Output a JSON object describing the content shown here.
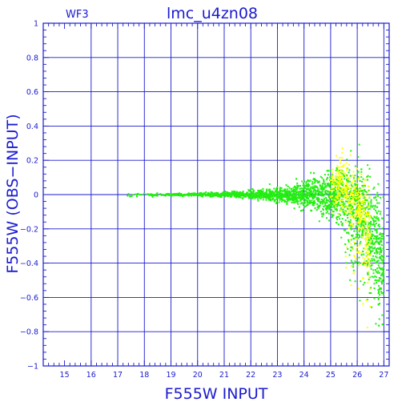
{
  "chart_data": {
    "type": "scatter",
    "title": "lmc_u4zn08",
    "corner_label": "WF3",
    "xlabel": "F555W  INPUT",
    "ylabel": "F555W  (OBS−INPUT)",
    "xlim": [
      14.2,
      27.2
    ],
    "ylim": [
      -1,
      1
    ],
    "x_ticks": [
      15,
      16,
      17,
      18,
      19,
      20,
      21,
      22,
      23,
      24,
      25,
      26,
      27
    ],
    "y_ticks": [
      1,
      0.8,
      0.6,
      0.4,
      0.2,
      0,
      -0.2,
      -0.4,
      -0.6,
      -0.8,
      -1
    ],
    "x_tick_labels": [
      "15",
      "16",
      "17",
      "18",
      "19",
      "20",
      "21",
      "22",
      "23",
      "24",
      "25",
      "26",
      "27"
    ],
    "y_tick_labels": [
      "1",
      "0.8",
      "0.6",
      "0.4",
      "0.2",
      "0",
      "−0.2",
      "−0.4",
      "−0.6",
      "−0.8",
      "−1"
    ],
    "grid": true,
    "colors": {
      "axes": "#1a1ad0",
      "primary": "#22ee11",
      "secondary": "#ffff00"
    },
    "series": [
      {
        "color": "#22ee11",
        "envelope": [
          {
            "mag": 17.0,
            "median": 0.0,
            "spread": 0.018
          },
          {
            "mag": 18.0,
            "median": 0.0,
            "spread": 0.012
          },
          {
            "mag": 19.0,
            "median": 0.0,
            "spread": 0.01
          },
          {
            "mag": 20.0,
            "median": 0.0,
            "spread": 0.012
          },
          {
            "mag": 21.0,
            "median": 0.0,
            "spread": 0.018
          },
          {
            "mag": 22.0,
            "median": 0.0,
            "spread": 0.03
          },
          {
            "mag": 23.0,
            "median": 0.0,
            "spread": 0.05
          },
          {
            "mag": 24.0,
            "median": 0.0,
            "spread": 0.09
          },
          {
            "mag": 25.0,
            "median": 0.0,
            "spread": 0.16
          },
          {
            "mag": 25.6,
            "median": -0.02,
            "spread": 0.26
          },
          {
            "mag": 26.0,
            "median": -0.05,
            "spread": 0.33
          },
          {
            "mag": 26.5,
            "median": -0.15,
            "spread": 0.38
          },
          {
            "mag": 27.0,
            "median": -0.35,
            "spread": 0.4
          }
        ]
      },
      {
        "color": "#ffff00",
        "envelope": [
          {
            "mag": 25.0,
            "median": 0.05,
            "spread": 0.15
          },
          {
            "mag": 25.5,
            "median": 0.05,
            "spread": 0.22
          },
          {
            "mag": 26.0,
            "median": -0.05,
            "spread": 0.3
          },
          {
            "mag": 26.5,
            "median": -0.2,
            "spread": 0.35
          }
        ]
      }
    ]
  }
}
